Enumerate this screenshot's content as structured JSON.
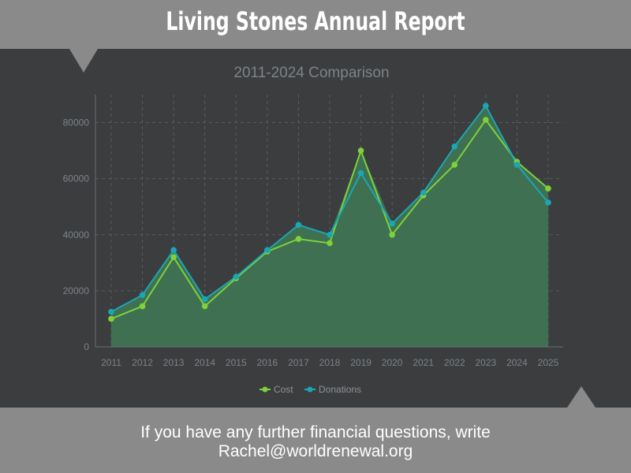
{
  "header": {
    "title": "Living Stones Annual Report"
  },
  "footer": {
    "line1": "If you have any further financial questions, write",
    "line2": "Rachel@worldrenewal.org"
  },
  "colors": {
    "cost": "#7ed13a",
    "donations": "#1aa7b4",
    "area_fill": "#3f7352",
    "band": "#8a8a8a",
    "background": "#3b3d3f"
  },
  "chart_data": {
    "type": "area",
    "title": "",
    "subtitle": "2011-2024 Comparison",
    "xlabel": "",
    "ylabel": "",
    "x": [
      "2011",
      "2012",
      "2013",
      "2014",
      "2015",
      "2016",
      "2017",
      "2018",
      "2019",
      "2020",
      "2021",
      "2022",
      "2023",
      "2024",
      "2025"
    ],
    "y_ticks": [
      "0",
      "20000",
      "40000",
      "60000",
      "80000"
    ],
    "ylim": [
      0,
      90000
    ],
    "grid": true,
    "legend": "bottom-center",
    "series": [
      {
        "name": "Cost",
        "values": [
          10000,
          14500,
          32000,
          14500,
          24500,
          34000,
          38500,
          37000,
          70000,
          40000,
          54000,
          65000,
          81000,
          66000,
          56500
        ]
      },
      {
        "name": "Donations",
        "values": [
          12500,
          18500,
          34500,
          17000,
          25000,
          34500,
          43500,
          40000,
          62000,
          44000,
          55000,
          71500,
          86000,
          65000,
          51500
        ]
      }
    ]
  }
}
